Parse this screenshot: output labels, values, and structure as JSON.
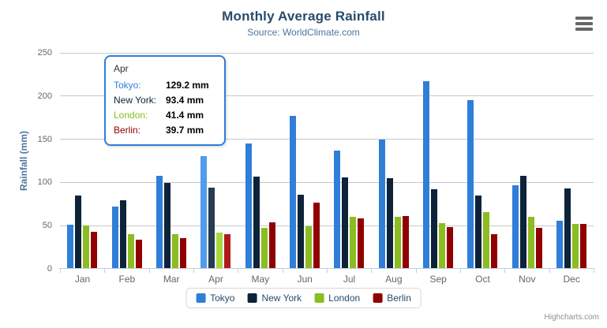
{
  "chart_data": {
    "type": "bar",
    "title": "Monthly Average Rainfall",
    "subtitle": "Source: WorldClimate.com",
    "xlabel": "",
    "ylabel": "Rainfall (mm)",
    "ylim": [
      0,
      250
    ],
    "yticks": [
      0,
      50,
      100,
      150,
      200,
      250
    ],
    "grid": true,
    "legend_position": "bottom",
    "categories": [
      "Jan",
      "Feb",
      "Mar",
      "Apr",
      "May",
      "Jun",
      "Jul",
      "Aug",
      "Sep",
      "Oct",
      "Nov",
      "Dec"
    ],
    "hovered_category": "Apr",
    "hovered_category_index": 3,
    "series": [
      {
        "name": "Tokyo",
        "color": "#2f7ed8",
        "hover_color": "#529bee",
        "values": [
          49.9,
          71.5,
          106.4,
          129.2,
          144.0,
          176.0,
          135.6,
          148.5,
          216.4,
          194.1,
          95.6,
          54.4
        ]
      },
      {
        "name": "New York",
        "color": "#0d233a",
        "hover_color": "#263c52",
        "values": [
          83.6,
          78.8,
          98.5,
          93.4,
          106.0,
          84.5,
          105.0,
          104.3,
          91.2,
          83.5,
          106.6,
          92.3
        ]
      },
      {
        "name": "London",
        "color": "#8bbc21",
        "hover_color": "#a7d83e",
        "values": [
          48.9,
          38.8,
          39.3,
          41.4,
          47.0,
          48.3,
          59.0,
          59.6,
          52.4,
          65.2,
          59.3,
          51.2
        ]
      },
      {
        "name": "Berlin",
        "color": "#910000",
        "hover_color": "#b01a1a",
        "values": [
          42.4,
          33.2,
          34.5,
          39.7,
          52.6,
          75.5,
          57.4,
          60.4,
          47.6,
          39.1,
          46.8,
          51.1
        ]
      }
    ]
  },
  "tooltip": {
    "header": "Apr",
    "border_color": "#2f7ed8",
    "rows": [
      {
        "label": "Tokyo:",
        "value": "129.2 mm",
        "color": "#2f7ed8"
      },
      {
        "label": "New York:",
        "value": "93.4 mm",
        "color": "#0d233a"
      },
      {
        "label": "London:",
        "value": "41.4 mm",
        "color": "#8bbc21"
      },
      {
        "label": "Berlin:",
        "value": "39.7 mm",
        "color": "#910000"
      }
    ]
  },
  "credits": {
    "label": "Highcharts.com"
  },
  "colors": {
    "title": "#274b6d",
    "subtitle": "#4d759e",
    "axis_label": "#666666",
    "axis_line": "#c0d0e0",
    "gridline": "#c8c8c8",
    "legend_text": "#274b6d"
  }
}
